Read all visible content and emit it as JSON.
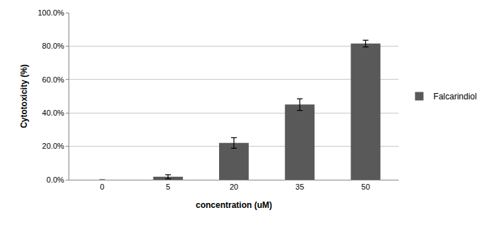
{
  "chart_data": {
    "type": "bar",
    "x_label": "concentration (uM)",
    "y_label": "Cytotoxicity (%)",
    "categories": [
      "0",
      "5",
      "20",
      "35",
      "50"
    ],
    "series": [
      {
        "name": "Falcarindiol",
        "color": "#595959",
        "values": [
          0,
          1.8,
          22.0,
          45.0,
          81.5
        ],
        "errors": [
          0,
          1.2,
          3.2,
          3.5,
          2.0
        ]
      }
    ],
    "ylim": [
      0,
      100
    ],
    "yticks": [
      {
        "value": 0,
        "label": "0.0%"
      },
      {
        "value": 20,
        "label": "20.0%"
      },
      {
        "value": 40,
        "label": "40.0%"
      },
      {
        "value": 60,
        "label": "60.0%"
      },
      {
        "value": 80,
        "label": "80.0%"
      },
      {
        "value": 100,
        "label": "100.0%"
      }
    ],
    "grid": true,
    "legend": "right"
  }
}
